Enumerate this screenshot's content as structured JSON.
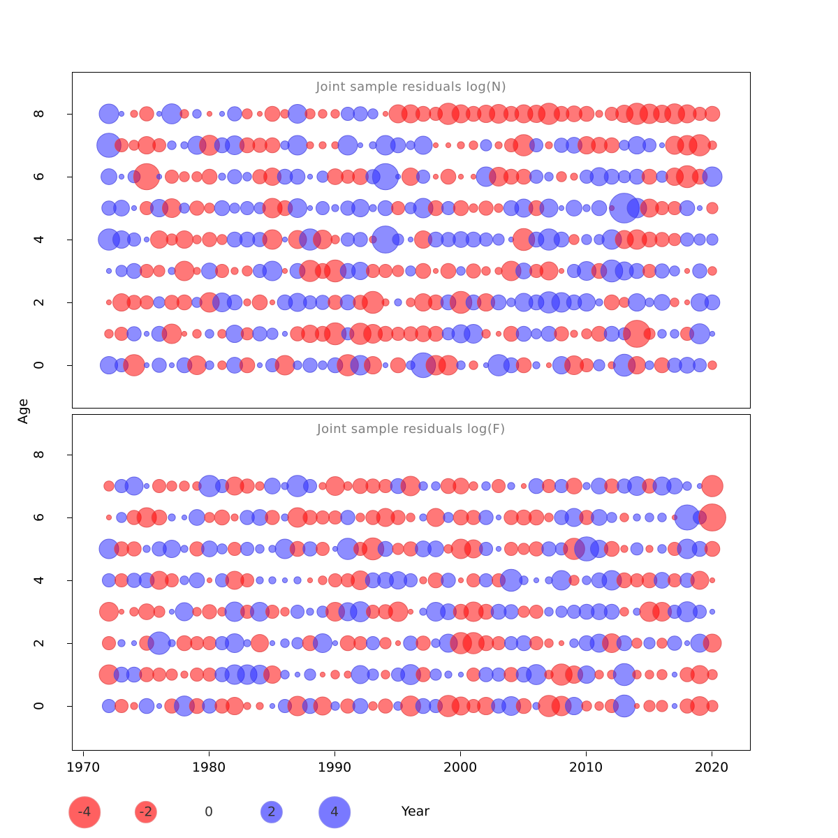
{
  "figure": {
    "background": "#ffffff",
    "ylabel": "Age",
    "xlabel": "Year"
  },
  "axes": {
    "x_ticks": [
      1970,
      1980,
      1990,
      2000,
      2010,
      2020
    ],
    "y_ticks": [
      0,
      2,
      4,
      6,
      8
    ]
  },
  "colors": {
    "negative_fill": "#ff0000",
    "positive_fill": "#2828ff",
    "negative_stroke": "#e04a4a",
    "positive_stroke": "#5050e0",
    "bubble_opacity": 0.53,
    "title_color": "#7e7e7e"
  },
  "legend": {
    "items": [
      {
        "label": "-4",
        "value": -4,
        "color": "negative"
      },
      {
        "label": "-2",
        "value": -2,
        "color": "negative"
      },
      {
        "label": "0",
        "value": 0,
        "color": "none"
      },
      {
        "label": "2",
        "value": 2,
        "color": "positive"
      },
      {
        "label": "4",
        "value": 4,
        "color": "positive"
      }
    ],
    "axis_title": "Year"
  },
  "years": [
    1972,
    1973,
    1974,
    1975,
    1976,
    1977,
    1978,
    1979,
    1980,
    1981,
    1982,
    1983,
    1984,
    1985,
    1986,
    1987,
    1988,
    1989,
    1990,
    1991,
    1992,
    1993,
    1994,
    1995,
    1996,
    1997,
    1998,
    1999,
    2000,
    2001,
    2002,
    2003,
    2004,
    2005,
    2006,
    2007,
    2008,
    2009,
    2010,
    2011,
    2012,
    2013,
    2014,
    2015,
    2016,
    2017,
    2018,
    2019,
    2020
  ],
  "chart_data": [
    {
      "type": "bubble",
      "title": "Joint sample residuals log(N)",
      "xlabel": "Year",
      "ylabel": "Age",
      "x_range": [
        1969,
        2023
      ],
      "y_range": [
        -1,
        9
      ],
      "value_encoding": "sign: red=negative, blue=positive; area ~ |value|, scale as legend (-4..4)",
      "rows": [
        {
          "age": 8,
          "values": [
            1.5,
            0.1,
            -0.2,
            -0.8,
            0.1,
            1.6,
            -0.3,
            0.3,
            -0.1,
            0.1,
            0.8,
            -0.4,
            -0.1,
            -0.9,
            -0.3,
            1.4,
            -0.4,
            -0.3,
            -0.3,
            0.7,
            0.8,
            0.4,
            -0.1,
            -1.3,
            -1.3,
            -0.9,
            -0.7,
            -1.8,
            -1.3,
            -0.9,
            -1.2,
            -1.4,
            -0.9,
            -1.3,
            -1.2,
            -1.8,
            -0.9,
            -1.0,
            -0.9,
            -0.2,
            -0.7,
            -1.2,
            -1.8,
            -1.5,
            -1.2,
            -1.6,
            -1.3,
            -0.7,
            -0.9
          ]
        },
        {
          "age": 7,
          "values": [
            2.3,
            -0.7,
            -0.4,
            -1.2,
            -0.7,
            0.3,
            0.2,
            1.3,
            -1.6,
            0.9,
            1.4,
            -0.9,
            -0.8,
            -0.9,
            0.3,
            1.5,
            -0.2,
            -0.2,
            -0.2,
            1.5,
            0.1,
            0.2,
            1.5,
            0.9,
            0.3,
            1.3,
            -0.1,
            -0.1,
            -0.2,
            -0.3,
            0.5,
            -0.2,
            -0.7,
            -1.8,
            0.7,
            -0.2,
            0.8,
            1.0,
            -1.2,
            -1.0,
            -0.9,
            0.4,
            1.2,
            0.7,
            0.1,
            -1.3,
            -1.5,
            -1.8,
            -0.3
          ]
        },
        {
          "age": 6,
          "values": [
            1.0,
            0.1,
            0.6,
            -2.7,
            0.1,
            -0.7,
            -0.4,
            -0.4,
            -0.9,
            0.2,
            0.8,
            0.3,
            -0.8,
            -1.2,
            0.9,
            0.9,
            0.1,
            0.5,
            -1.0,
            -0.7,
            -1.0,
            0.8,
            2.7,
            0.1,
            -1.2,
            0.7,
            -0.1,
            -0.9,
            -0.1,
            -0.1,
            1.5,
            -1.4,
            -0.9,
            -0.9,
            0.7,
            0.3,
            -0.4,
            -0.2,
            0.7,
            1.3,
            0.9,
            0.6,
            0.9,
            -0.9,
            0.5,
            -1.2,
            -1.9,
            -0.9,
            1.5
          ]
        },
        {
          "age": 5,
          "values": [
            0.8,
            1.0,
            0.1,
            -0.7,
            1.2,
            -1.4,
            0.4,
            -0.8,
            -0.4,
            0.9,
            0.4,
            0.7,
            0.5,
            -1.5,
            -0.9,
            1.4,
            0.1,
            0.7,
            0.2,
            0.8,
            1.2,
            0.2,
            0.9,
            -0.7,
            0.5,
            1.5,
            -0.9,
            0.7,
            -0.9,
            -0.3,
            -0.8,
            -0.3,
            0.9,
            1.3,
            -0.9,
            1.3,
            0.1,
            1.0,
            0.2,
            0.9,
            -0.1,
            3.5,
            1.5,
            -1.3,
            -0.7,
            -0.7,
            0.9,
            0.1,
            -0.5
          ]
        },
        {
          "age": 4,
          "values": [
            1.8,
            1.2,
            0.7,
            0.1,
            -1.2,
            -0.5,
            -1.2,
            -0.3,
            -0.8,
            -0.4,
            0.9,
            0.9,
            0.8,
            -1.5,
            0.1,
            -1.3,
            1.8,
            -1.4,
            -0.3,
            0.7,
            0.8,
            -0.2,
            2.9,
            0.5,
            0.1,
            -1.2,
            0.9,
            0.8,
            1.0,
            0.9,
            0.7,
            0.5,
            0.1,
            -1.9,
            0.9,
            1.8,
            0.9,
            -0.4,
            0.4,
            0.4,
            1.5,
            -1.3,
            -1.5,
            -0.9,
            -0.8,
            -0.6,
            0.7,
            0.5,
            0.5
          ]
        },
        {
          "age": 3,
          "values": [
            0.1,
            0.5,
            0.9,
            -0.7,
            -0.5,
            0.2,
            -1.5,
            -0.2,
            1.0,
            -0.7,
            -0.2,
            -0.4,
            0.7,
            1.5,
            -0.1,
            0.9,
            -1.8,
            -0.9,
            -1.9,
            0.9,
            1.2,
            -0.7,
            -0.7,
            -0.5,
            0.4,
            -0.9,
            -0.1,
            -0.9,
            0.3,
            -0.8,
            -0.3,
            -0.2,
            -1.5,
            1.0,
            -0.7,
            -1.3,
            -0.1,
            0.7,
            1.4,
            -0.9,
            1.9,
            1.3,
            0.9,
            -0.7,
            0.8,
            0.4,
            -0.1,
            0.8,
            -0.3
          ]
        },
        {
          "age": 2,
          "values": [
            -0.1,
            -1.2,
            -0.8,
            -0.7,
            0.5,
            -0.8,
            -0.9,
            0.4,
            -1.5,
            1.4,
            0.9,
            -0.2,
            -0.9,
            -0.1,
            0.9,
            1.3,
            0.7,
            0.8,
            -0.8,
            0.9,
            -0.8,
            -1.9,
            -0.2,
            0.2,
            -0.3,
            -1.2,
            -0.9,
            0.9,
            -1.9,
            0.9,
            -1.2,
            0.9,
            0.3,
            1.3,
            0.9,
            1.8,
            1.5,
            0.9,
            1.2,
            0.2,
            -0.9,
            -0.4,
            1.2,
            0.3,
            1.0,
            -0.3,
            -0.1,
            1.2,
            0.9
          ]
        },
        {
          "age": 1,
          "values": [
            -0.3,
            -0.7,
            0.8,
            0.1,
            0.9,
            -1.5,
            -0.1,
            -0.3,
            0.3,
            -0.3,
            1.2,
            -0.6,
            0.8,
            0.5,
            0.1,
            -0.8,
            -1.2,
            -0.9,
            -1.9,
            0.6,
            -1.8,
            -1.4,
            -0.9,
            -0.7,
            -0.8,
            -1.0,
            -0.9,
            0.6,
            1.3,
            1.4,
            -0.3,
            -0.1,
            -0.9,
            0.9,
            0.4,
            0.9,
            -0.8,
            -0.2,
            -0.4,
            -0.9,
            0.9,
            0.6,
            -2.9,
            -0.5,
            0.3,
            0.3,
            -0.7,
            1.6,
            0.1
          ]
        },
        {
          "age": 0,
          "values": [
            1.2,
            0.7,
            -1.8,
            0.1,
            0.8,
            0.1,
            0.9,
            -1.4,
            0.3,
            -0.3,
            1.0,
            -0.9,
            0.1,
            0.7,
            -1.5,
            0.3,
            0.8,
            0.3,
            0.9,
            -1.8,
            1.5,
            -1.2,
            0.1,
            -0.9,
            0.3,
            2.4,
            -1.5,
            -1.5,
            0.3,
            -0.3,
            0.1,
            1.8,
            0.9,
            -0.9,
            0.2,
            -0.1,
            1.2,
            -1.4,
            -0.7,
            0.5,
            -0.2,
            1.9,
            -1.2,
            0.3,
            -0.9,
            0.8,
            1.0,
            0.7,
            -0.3
          ]
        }
      ]
    },
    {
      "type": "bubble",
      "title": "Joint sample residuals log(F)",
      "xlabel": "Year",
      "ylabel": "Age",
      "x_range": [
        1969,
        2023
      ],
      "y_range": [
        -1,
        9
      ],
      "value_encoding": "sign: red=negative, blue=positive; area ~ |value|, scale as legend (-4..4)",
      "rows": [
        {
          "age": 7,
          "values": [
            -0.4,
            0.7,
            1.3,
            0.1,
            -0.7,
            -0.4,
            -0.4,
            -0.3,
            1.8,
            0.7,
            -1.3,
            -0.8,
            -0.3,
            1.0,
            0.2,
            1.8,
            0.7,
            -0.2,
            -1.4,
            -0.3,
            -0.9,
            -0.8,
            -0.7,
            0.9,
            -1.5,
            0.3,
            0.3,
            -0.9,
            -1.0,
            -0.3,
            0.3,
            -0.7,
            0.2,
            -0.1,
            0.9,
            -0.7,
            0.7,
            -1.0,
            0.2,
            1.0,
            -0.8,
            0.8,
            1.4,
            -0.8,
            1.3,
            1.0,
            0.3,
            0.1,
            -1.8
          ]
        },
        {
          "age": 6,
          "values": [
            -0.1,
            0.4,
            -0.8,
            -1.5,
            -0.9,
            0.2,
            0.1,
            1.0,
            -0.4,
            -0.9,
            -0.2,
            0.8,
            1.0,
            -0.8,
            0.2,
            -1.5,
            -0.8,
            -0.7,
            -0.7,
            0.8,
            -0.3,
            -0.8,
            -1.3,
            -0.8,
            -0.3,
            0.2,
            -1.3,
            0.4,
            -0.9,
            -0.8,
            0.8,
            0.1,
            -0.8,
            -0.9,
            -0.9,
            -0.3,
            0.8,
            1.3,
            -0.8,
            1.0,
            0.4,
            -0.3,
            0.2,
            0.3,
            0.3,
            -0.1,
            2.5,
            0.7,
            -2.9
          ]
        },
        {
          "age": 5,
          "values": [
            1.5,
            -0.8,
            -0.8,
            0.2,
            0.8,
            1.2,
            0.2,
            -0.8,
            1.0,
            0.4,
            -0.7,
            0.7,
            0.3,
            0.2,
            1.5,
            -0.9,
            0.8,
            -0.7,
            0.1,
            1.8,
            -0.7,
            -1.9,
            0.9,
            -0.5,
            -0.8,
            1.0,
            1.0,
            -0.3,
            -1.5,
            -1.3,
            0.7,
            0.1,
            -0.7,
            -0.5,
            -0.8,
            0.8,
            0.6,
            -1.8,
            2.3,
            1.2,
            -0.9,
            -0.2,
            0.6,
            -0.2,
            0.3,
            -0.7,
            1.5,
            0.9,
            -0.9
          ]
        },
        {
          "age": 4,
          "values": [
            0.7,
            -0.7,
            0.8,
            0.9,
            -1.3,
            -0.7,
            0.3,
            0.9,
            -0.1,
            0.7,
            -1.3,
            -0.7,
            0.2,
            0.2,
            0.1,
            0.2,
            -0.1,
            -0.3,
            -0.7,
            -0.7,
            -1.4,
            0.9,
            1.0,
            1.2,
            0.7,
            -0.2,
            -0.9,
            0.8,
            -0.1,
            -0.7,
            0.7,
            -0.7,
            1.9,
            0.3,
            0.1,
            0.2,
            1.5,
            -0.4,
            0.3,
            0.9,
            1.5,
            -0.9,
            -0.7,
            -0.9,
            1.0,
            -0.7,
            0.8,
            -1.3,
            -0.1
          ]
        },
        {
          "age": 3,
          "values": [
            -1.4,
            -0.1,
            -0.3,
            -1.0,
            -0.5,
            0.1,
            1.3,
            -0.3,
            -0.8,
            -0.3,
            1.5,
            -0.7,
            1.4,
            -0.7,
            -0.3,
            0.7,
            0.2,
            0.5,
            -1.4,
            1.3,
            1.6,
            -0.7,
            -0.8,
            -1.5,
            -0.1,
            0.2,
            1.4,
            1.0,
            -0.9,
            -1.5,
            -0.9,
            0.9,
            0.8,
            -0.5,
            -0.7,
            0.3,
            0.5,
            0.7,
            0.9,
            1.0,
            0.9,
            -0.3,
            0.2,
            -1.5,
            -1.4,
            0.7,
            1.6,
            0.7,
            0.1
          ]
        },
        {
          "age": 2,
          "values": [
            -0.7,
            0.2,
            0.1,
            -0.8,
            2.0,
            0.2,
            -0.9,
            -0.7,
            -0.7,
            0.7,
            1.4,
            0.2,
            -1.2,
            0.1,
            0.3,
            0.5,
            -0.9,
            1.4,
            0.1,
            -0.9,
            -0.7,
            0.7,
            -0.5,
            -0.1,
            0.8,
            -0.8,
            0.3,
            1.3,
            -1.8,
            -1.8,
            -0.9,
            -0.7,
            0.7,
            0.9,
            -0.7,
            -0.3,
            -0.1,
            0.3,
            0.9,
            1.3,
            -1.4,
            0.9,
            -0.4,
            0.5,
            -0.4,
            0.8,
            0.1,
            1.3,
            -1.3
          ]
        },
        {
          "age": 1,
          "values": [
            -1.5,
            0.9,
            0.9,
            -0.8,
            -0.7,
            -0.5,
            -0.2,
            -0.7,
            -0.7,
            0.8,
            1.5,
            1.5,
            1.4,
            -1.2,
            0.3,
            0.1,
            0.5,
            -0.1,
            -0.3,
            -0.2,
            1.3,
            0.5,
            -0.3,
            0.7,
            1.6,
            -0.8,
            0.5,
            0.2,
            0.1,
            -0.7,
            0.8,
            0.7,
            -0.8,
            0.9,
            1.6,
            -0.3,
            -1.8,
            -1.2,
            1.2,
            -0.3,
            -0.3,
            1.9,
            -0.3,
            -0.3,
            -0.4,
            0.1,
            -0.8,
            -1.3,
            -0.4
          ]
        },
        {
          "age": 0,
          "values": [
            0.7,
            -0.7,
            -0.2,
            0.9,
            0.1,
            -0.8,
            1.6,
            -0.9,
            0.8,
            -0.8,
            -1.2,
            -0.2,
            -0.2,
            0.1,
            0.7,
            -1.5,
            0.9,
            -1.3,
            0.3,
            -0.8,
            0.9,
            -0.3,
            -0.8,
            0.3,
            -1.6,
            0.9,
            0.7,
            -1.8,
            -1.3,
            -0.7,
            -1.2,
            0.8,
            1.4,
            -0.9,
            0.2,
            -1.8,
            -1.5,
            1.2,
            -0.4,
            -0.3,
            -0.7,
            1.9,
            -0.1,
            -0.5,
            -0.5,
            0.1,
            -0.8,
            -1.4,
            -0.5
          ]
        }
      ]
    }
  ]
}
